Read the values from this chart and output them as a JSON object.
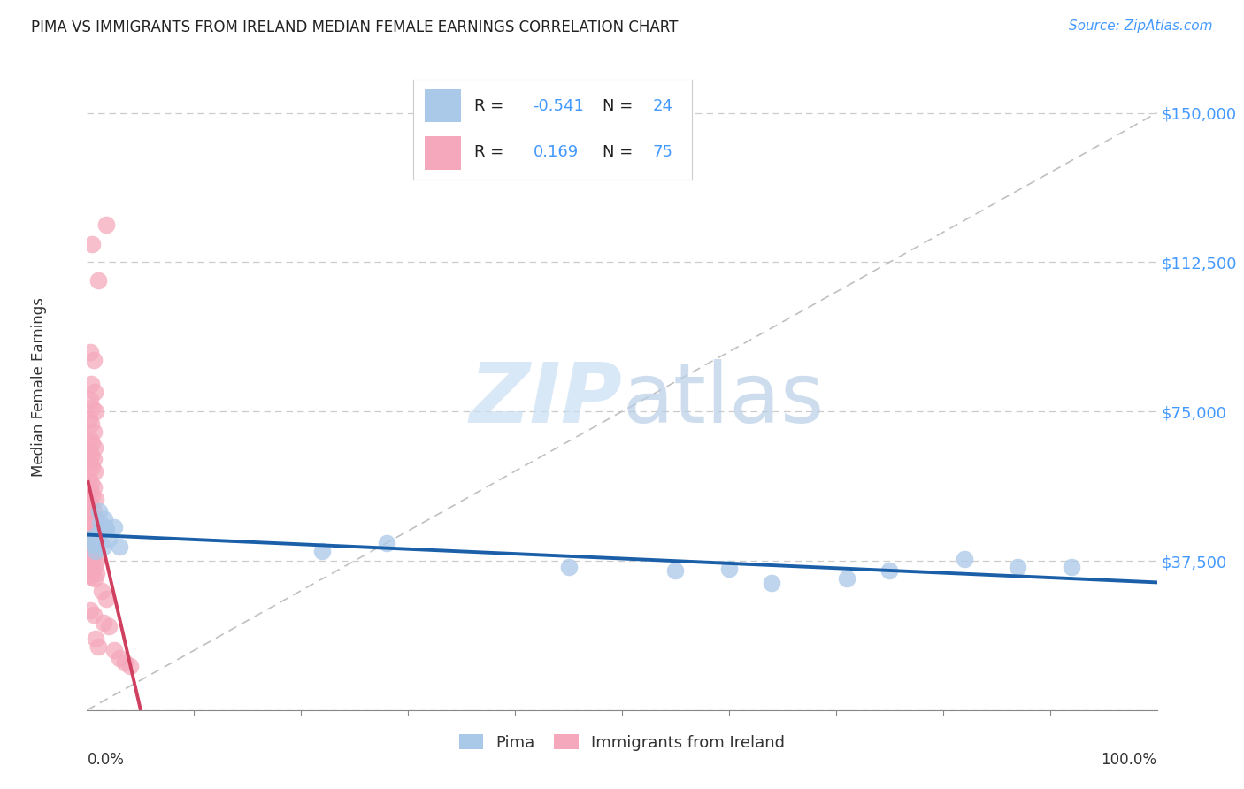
{
  "title": "PIMA VS IMMIGRANTS FROM IRELAND MEDIAN FEMALE EARNINGS CORRELATION CHART",
  "source": "Source: ZipAtlas.com",
  "ylabel": "Median Female Earnings",
  "yticks": [
    0,
    37500,
    75000,
    112500,
    150000
  ],
  "ytick_labels": [
    "",
    "$37,500",
    "$75,000",
    "$112,500",
    "$150,000"
  ],
  "xlim": [
    0.0,
    1.0
  ],
  "ylim": [
    0,
    162500
  ],
  "pima_color": "#aac8e8",
  "ireland_color": "#f5a8bc",
  "pima_line_color": "#1a5fa8",
  "ireland_line_color": "#d04060",
  "watermark_zip_color": "#c8dff5",
  "watermark_atlas_color": "#b8cfe8",
  "grid_color": "#cccccc",
  "background_color": "#ffffff",
  "diagonal_color": "#c0c0c0",
  "pima_points": [
    [
      0.004,
      43000
    ],
    [
      0.006,
      41500
    ],
    [
      0.007,
      42000
    ],
    [
      0.008,
      40000
    ],
    [
      0.009,
      44000
    ],
    [
      0.01,
      43500
    ],
    [
      0.011,
      50000
    ],
    [
      0.012,
      47000
    ],
    [
      0.013,
      45000
    ],
    [
      0.015,
      41000
    ],
    [
      0.016,
      48000
    ],
    [
      0.017,
      46000
    ],
    [
      0.018,
      45500
    ],
    [
      0.02,
      43000
    ],
    [
      0.025,
      46000
    ],
    [
      0.03,
      41000
    ],
    [
      0.22,
      40000
    ],
    [
      0.28,
      42000
    ],
    [
      0.45,
      36000
    ],
    [
      0.55,
      35000
    ],
    [
      0.6,
      35500
    ],
    [
      0.64,
      32000
    ],
    [
      0.71,
      33000
    ],
    [
      0.75,
      35000
    ],
    [
      0.82,
      38000
    ],
    [
      0.87,
      36000
    ],
    [
      0.92,
      36000
    ]
  ],
  "ireland_points": [
    [
      0.005,
      117000
    ],
    [
      0.01,
      108000
    ],
    [
      0.018,
      122000
    ],
    [
      0.003,
      90000
    ],
    [
      0.006,
      88000
    ],
    [
      0.004,
      82000
    ],
    [
      0.007,
      80000
    ],
    [
      0.003,
      78000
    ],
    [
      0.005,
      76000
    ],
    [
      0.008,
      75000
    ],
    [
      0.002,
      73000
    ],
    [
      0.004,
      72000
    ],
    [
      0.006,
      70000
    ],
    [
      0.003,
      68000
    ],
    [
      0.005,
      67000
    ],
    [
      0.007,
      66000
    ],
    [
      0.002,
      65000
    ],
    [
      0.004,
      64000
    ],
    [
      0.006,
      63000
    ],
    [
      0.003,
      62000
    ],
    [
      0.005,
      61000
    ],
    [
      0.007,
      60000
    ],
    [
      0.002,
      58000
    ],
    [
      0.004,
      57000
    ],
    [
      0.006,
      56000
    ],
    [
      0.003,
      55000
    ],
    [
      0.005,
      54000
    ],
    [
      0.008,
      53000
    ],
    [
      0.002,
      52000
    ],
    [
      0.004,
      51000
    ],
    [
      0.006,
      50000
    ],
    [
      0.003,
      49000
    ],
    [
      0.005,
      48500
    ],
    [
      0.008,
      48000
    ],
    [
      0.002,
      47000
    ],
    [
      0.004,
      46500
    ],
    [
      0.007,
      46000
    ],
    [
      0.003,
      45000
    ],
    [
      0.005,
      44500
    ],
    [
      0.008,
      44000
    ],
    [
      0.002,
      43000
    ],
    [
      0.004,
      42500
    ],
    [
      0.006,
      42000
    ],
    [
      0.003,
      41500
    ],
    [
      0.005,
      41000
    ],
    [
      0.008,
      40500
    ],
    [
      0.002,
      40000
    ],
    [
      0.004,
      39500
    ],
    [
      0.007,
      39000
    ],
    [
      0.003,
      38500
    ],
    [
      0.005,
      38000
    ],
    [
      0.009,
      37500
    ],
    [
      0.002,
      37000
    ],
    [
      0.004,
      36500
    ],
    [
      0.007,
      36000
    ],
    [
      0.003,
      35500
    ],
    [
      0.005,
      35000
    ],
    [
      0.009,
      34500
    ],
    [
      0.002,
      34000
    ],
    [
      0.004,
      33500
    ],
    [
      0.007,
      33000
    ],
    [
      0.014,
      30000
    ],
    [
      0.018,
      28000
    ],
    [
      0.003,
      25000
    ],
    [
      0.006,
      24000
    ],
    [
      0.015,
      22000
    ],
    [
      0.02,
      21000
    ],
    [
      0.008,
      18000
    ],
    [
      0.01,
      16000
    ],
    [
      0.025,
      15000
    ],
    [
      0.03,
      13000
    ],
    [
      0.035,
      12000
    ],
    [
      0.04,
      11000
    ]
  ]
}
